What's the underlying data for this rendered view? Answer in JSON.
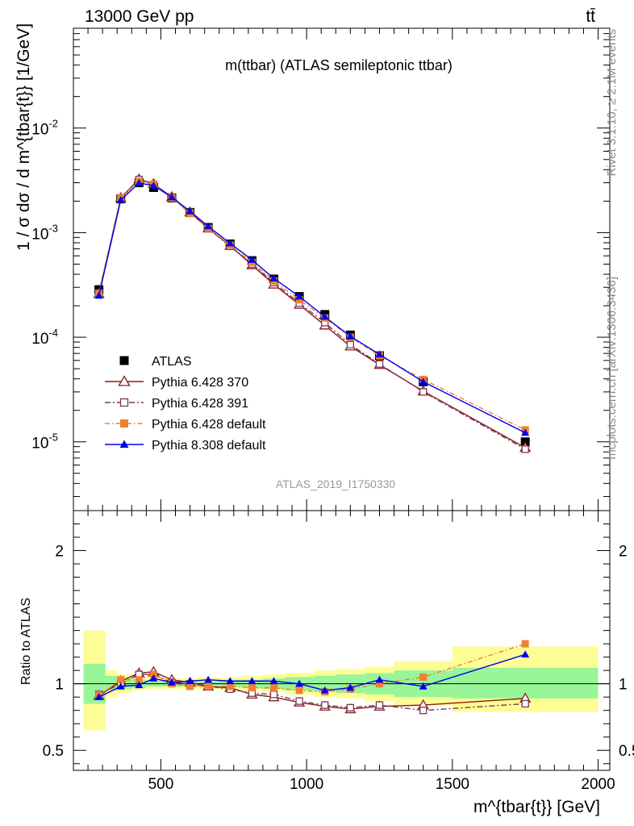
{
  "header": {
    "energy_label": "13000 GeV pp",
    "process_label": "tt̄"
  },
  "side_text": {
    "rivet": "Rivet 3.1.10, ≥ 2.1M events",
    "mcplots": "mcplots.cern.ch [arXiv:1306.3436]"
  },
  "analysis_id": "ATLAS_2019_I1750330",
  "chart_data": [
    {
      "type": "line",
      "title": "m(ttbar) (ATLAS semileptonic ttbar)",
      "xlabel": "",
      "ylabel": "1 / σ dσ / d m^{tbar{t}} [1/GeV]",
      "yscale": "log",
      "xlim": [
        200,
        2040
      ],
      "ylim": [
        2.2e-06,
        0.09
      ],
      "ytick_labels": [
        "10^-5",
        "10^-4",
        "10^-3",
        "10^-2"
      ],
      "legend_placement": "lower-left",
      "x": [
        287.5,
        362.5,
        425,
        475,
        537.5,
        600,
        662.5,
        737.5,
        812.5,
        887.5,
        975,
        1062.5,
        1150,
        1250,
        1400,
        1750
      ],
      "series": [
        {
          "name": "ATLAS",
          "color": "#000000",
          "marker": "filled-square",
          "values": [
            0.000285,
            0.0021,
            0.003,
            0.0027,
            0.00215,
            0.00156,
            0.00112,
            0.00078,
            0.00054,
            0.00036,
            0.000245,
            0.000165,
            0.000105,
            6.65e-05,
            3.75e-05,
            1e-05
          ]
        },
        {
          "name": "Pythia 6.428 370",
          "color": "#8b1a1a",
          "marker": "open-triangle",
          "values": [
            0.00026,
            0.00215,
            0.00325,
            0.00293,
            0.0022,
            0.00157,
            0.0011,
            0.00075,
            0.00049,
            0.00032,
            0.000205,
            0.00013,
            8.2e-05,
            5.45e-05,
            3.05e-05,
            8.8e-06
          ]
        },
        {
          "name": "Pythia 6.428 391",
          "color": "#7a3a55",
          "marker": "open-square",
          "values": [
            0.000265,
            0.0021,
            0.00322,
            0.0029,
            0.00217,
            0.00156,
            0.00109,
            0.00074,
            0.0005,
            0.000333,
            0.000212,
            0.000138,
            8.5e-05,
            5.55e-05,
            3e-05,
            8.5e-06
          ]
        },
        {
          "name": "Pythia 6.428 default",
          "color": "#f08030",
          "marker": "filled-square",
          "values": [
            0.000262,
            0.00216,
            0.0031,
            0.0029,
            0.00215,
            0.00152,
            0.0011,
            0.00076,
            0.00052,
            0.000345,
            0.000228,
            0.000153,
            0.0001,
            6.65e-05,
            3.95e-05,
            1.3e-05
          ]
        },
        {
          "name": "Pythia 8.308 default",
          "color": "#0000ee",
          "marker": "filled-triangle",
          "values": [
            0.00025,
            0.00205,
            0.00298,
            0.00282,
            0.00218,
            0.0016,
            0.00115,
            0.00079,
            0.00055,
            0.000365,
            0.000245,
            0.000157,
            0.000102,
            6.85e-05,
            3.75e-05,
            1.22e-05
          ]
        }
      ]
    },
    {
      "type": "line",
      "title": "",
      "xlabel": "m^{tbar{t}} [GeV]",
      "ylabel": "Ratio to ATLAS",
      "xlim": [
        200,
        2040
      ],
      "ylim": [
        0.35,
        2.3
      ],
      "xtick_labels": [
        "500",
        "1000",
        "1500",
        "2000"
      ],
      "ytick_labels": [
        "0.5",
        "1",
        "2"
      ],
      "reference_line": 1,
      "uncertainty_bands": [
        {
          "x_low": 235,
          "x_high": 310,
          "inner": [
            0.85,
            1.15
          ],
          "outer": [
            0.65,
            1.4
          ]
        },
        {
          "x_low": 310,
          "x_high": 350,
          "inner": [
            0.95,
            1.06
          ],
          "outer": [
            0.9,
            1.1
          ]
        },
        {
          "x_low": 350,
          "x_high": 400,
          "inner": [
            0.96,
            1.04
          ],
          "outer": [
            0.93,
            1.07
          ]
        },
        {
          "x_low": 400,
          "x_high": 450,
          "inner": [
            0.97,
            1.03
          ],
          "outer": [
            0.95,
            1.05
          ]
        },
        {
          "x_low": 450,
          "x_high": 500,
          "inner": [
            0.98,
            1.02
          ],
          "outer": [
            0.96,
            1.04
          ]
        },
        {
          "x_low": 500,
          "x_high": 575,
          "inner": [
            0.98,
            1.02
          ],
          "outer": [
            0.96,
            1.04
          ]
        },
        {
          "x_low": 575,
          "x_high": 625,
          "inner": [
            0.98,
            1.02
          ],
          "outer": [
            0.96,
            1.04
          ]
        },
        {
          "x_low": 625,
          "x_high": 700,
          "inner": [
            0.98,
            1.02
          ],
          "outer": [
            0.96,
            1.05
          ]
        },
        {
          "x_low": 700,
          "x_high": 775,
          "inner": [
            0.98,
            1.03
          ],
          "outer": [
            0.95,
            1.05
          ]
        },
        {
          "x_low": 775,
          "x_high": 850,
          "inner": [
            0.97,
            1.03
          ],
          "outer": [
            0.95,
            1.06
          ]
        },
        {
          "x_low": 850,
          "x_high": 925,
          "inner": [
            0.96,
            1.04
          ],
          "outer": [
            0.94,
            1.07
          ]
        },
        {
          "x_low": 925,
          "x_high": 1025,
          "inner": [
            0.95,
            1.05
          ],
          "outer": [
            0.92,
            1.08
          ]
        },
        {
          "x_low": 1025,
          "x_high": 1100,
          "inner": [
            0.94,
            1.06
          ],
          "outer": [
            0.9,
            1.1
          ]
        },
        {
          "x_low": 1100,
          "x_high": 1200,
          "inner": [
            0.93,
            1.07
          ],
          "outer": [
            0.89,
            1.11
          ]
        },
        {
          "x_low": 1200,
          "x_high": 1300,
          "inner": [
            0.92,
            1.08
          ],
          "outer": [
            0.87,
            1.13
          ]
        },
        {
          "x_low": 1300,
          "x_high": 1500,
          "inner": [
            0.9,
            1.1
          ],
          "outer": [
            0.84,
            1.17
          ]
        },
        {
          "x_low": 1500,
          "x_high": 2000,
          "inner": [
            0.89,
            1.12
          ],
          "outer": [
            0.79,
            1.28
          ]
        }
      ],
      "x": [
        287.5,
        362.5,
        425,
        475,
        537.5,
        600,
        662.5,
        737.5,
        812.5,
        887.5,
        975,
        1062.5,
        1150,
        1250,
        1400,
        1750
      ],
      "series": [
        {
          "name": "Pythia 6.428 370",
          "color": "#8b1a1a",
          "marker": "open-triangle",
          "values": [
            0.91,
            1.02,
            1.08,
            1.09,
            1.03,
            1.01,
            0.98,
            0.97,
            0.92,
            0.9,
            0.86,
            0.83,
            0.81,
            0.83,
            0.84,
            0.89
          ]
        },
        {
          "name": "Pythia 6.428 391",
          "color": "#7a3a55",
          "marker": "open-square",
          "values": [
            0.92,
            1.0,
            1.07,
            1.07,
            1.01,
            1.0,
            0.98,
            0.96,
            0.93,
            0.92,
            0.87,
            0.84,
            0.82,
            0.84,
            0.8,
            0.85
          ]
        },
        {
          "name": "Pythia 6.428 default",
          "color": "#f08030",
          "marker": "filled-square",
          "values": [
            0.91,
            1.03,
            1.03,
            1.07,
            1.0,
            0.98,
            0.98,
            0.98,
            0.97,
            0.97,
            0.95,
            0.94,
            0.96,
            1.0,
            1.05,
            1.3
          ]
        },
        {
          "name": "Pythia 8.308 default",
          "color": "#0000ee",
          "marker": "filled-triangle",
          "values": [
            0.9,
            0.98,
            0.99,
            1.04,
            1.01,
            1.02,
            1.03,
            1.02,
            1.02,
            1.02,
            1.0,
            0.95,
            0.97,
            1.03,
            0.98,
            1.22
          ]
        }
      ]
    }
  ]
}
